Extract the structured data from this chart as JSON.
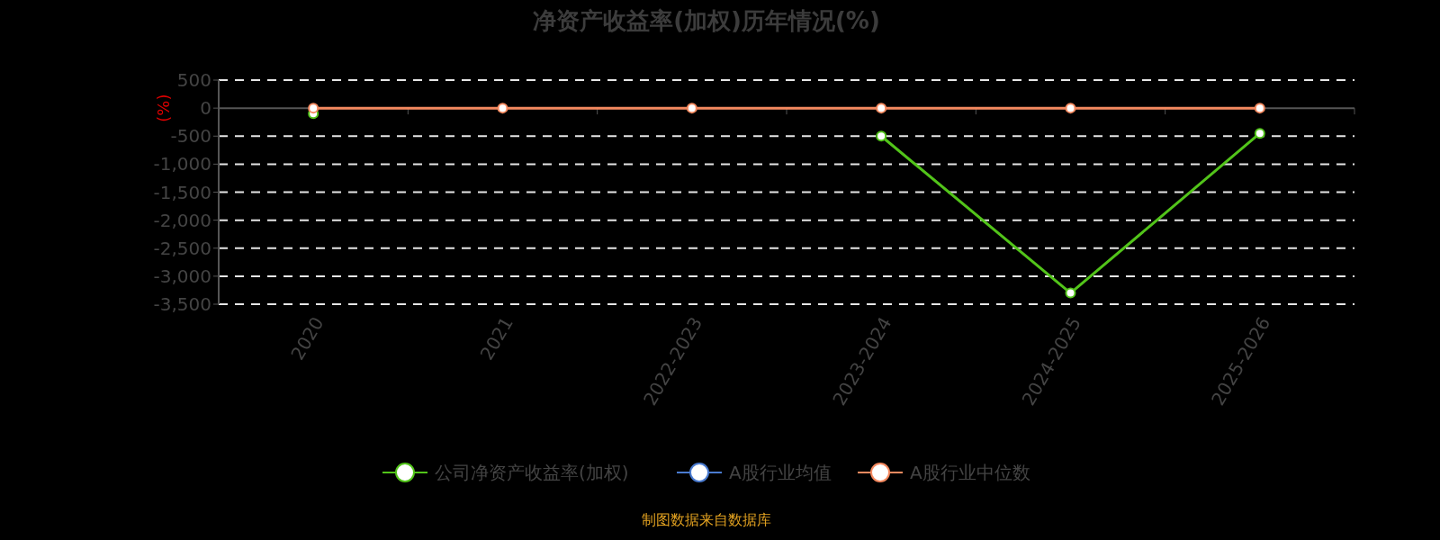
{
  "chart_data": {
    "type": "line",
    "title": "净资产收益率(加权)历年情况(%)",
    "ylabel": "(%)",
    "categories": [
      "2020",
      "2021",
      "2022-2023",
      "2023-2024",
      "2024-2025",
      "2025-2026"
    ],
    "series": [
      {
        "name": "公司净资产收益率(加权)",
        "color": "#52c41a",
        "values": [
          -100,
          null,
          null,
          -500,
          -3300,
          -450
        ]
      },
      {
        "name": "A股行业均值",
        "color": "#4a7bd0",
        "values": [
          null,
          null,
          null,
          null,
          null,
          null
        ]
      },
      {
        "name": "A股行业中位数",
        "color": "#f4895f",
        "values": [
          0,
          0,
          0,
          0,
          0,
          0
        ]
      }
    ],
    "ylim": [
      -3500,
      500
    ],
    "yticks": [
      {
        "value": 500,
        "label": "500"
      },
      {
        "value": 0,
        "label": "0"
      },
      {
        "value": -500,
        "label": "-500"
      },
      {
        "value": -1000,
        "label": "-1,000"
      },
      {
        "value": -1500,
        "label": "-1,500"
      },
      {
        "value": -2000,
        "label": "-2,000"
      },
      {
        "value": -2500,
        "label": "-2,500"
      },
      {
        "value": -3000,
        "label": "-3,000"
      },
      {
        "value": -3500,
        "label": "-3,500"
      }
    ],
    "grid": "y",
    "legend": "bottom",
    "marker": "circle",
    "line_style": "solid",
    "annotations": [
      "制图数据来自数据库"
    ]
  }
}
